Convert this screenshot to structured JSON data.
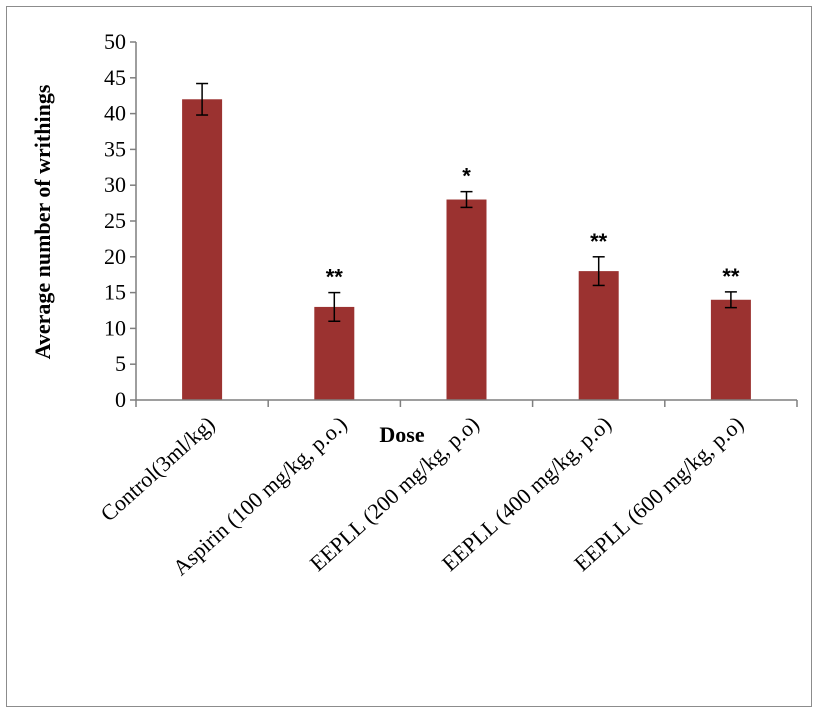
{
  "chart_data": {
    "type": "bar",
    "title": "",
    "xlabel": "Dose",
    "ylabel": "Average  number  of  writhings",
    "ylim": [
      0,
      50
    ],
    "yticks": [
      0,
      5,
      10,
      15,
      20,
      25,
      30,
      35,
      40,
      45,
      50
    ],
    "categories": [
      "Control(3ml/kg)",
      "Aspirin (100 mg/kg, p.o.)",
      "EEPLL (200 mg/kg, p.o)",
      "EEPLL (400 mg/kg, p.o)",
      "EEPLL (600 mg/kg, p.o)"
    ],
    "values": [
      42,
      13,
      28,
      18,
      14
    ],
    "errors": [
      2.2,
      2.0,
      1.1,
      2.0,
      1.1
    ],
    "annotations": [
      "",
      "**",
      "*",
      "**",
      "**"
    ],
    "grid": false,
    "legend": "none",
    "bar_color": "#9b3230"
  }
}
